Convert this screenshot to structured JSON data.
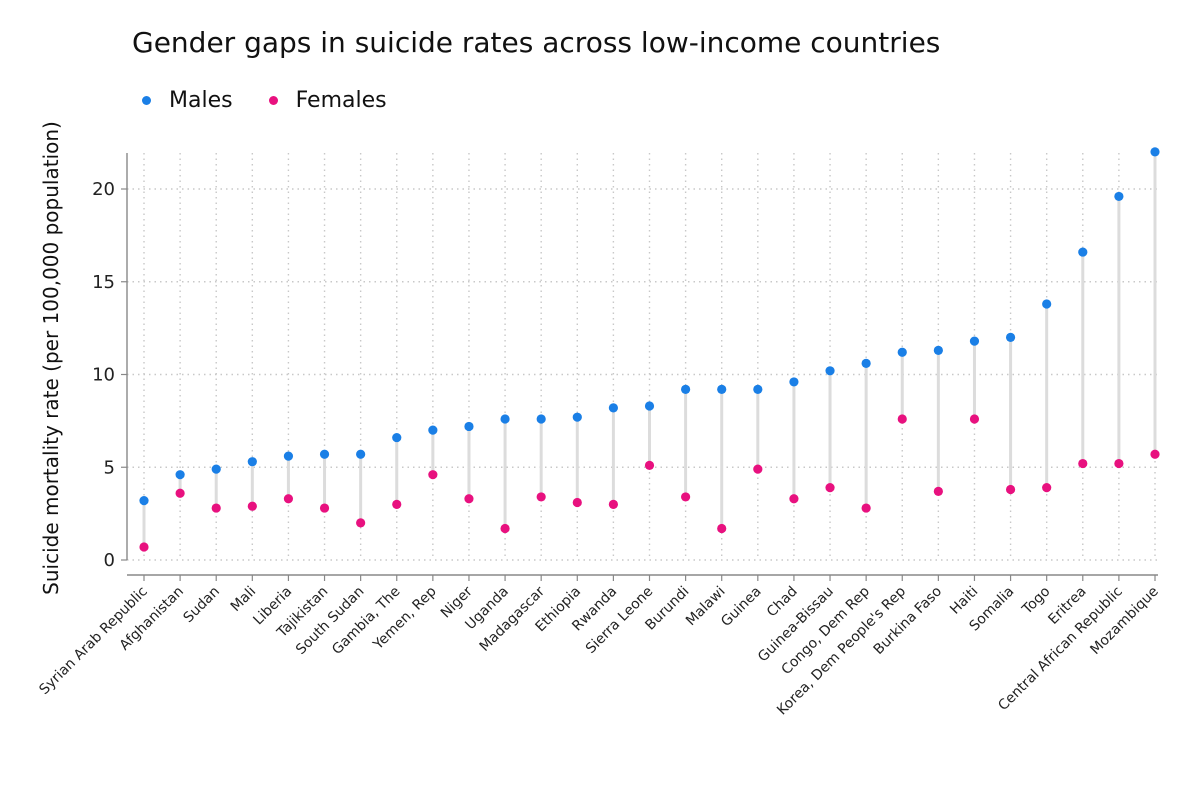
{
  "colors": {
    "males": "#1a7fe6",
    "females": "#e8117f",
    "connector": "#dcdcdc",
    "grid": "#c8c8c8",
    "axis": "#888888"
  },
  "chart_data": {
    "type": "scatter",
    "subtype": "dumbbell",
    "title": "Gender gaps in suicide rates across low-income countries",
    "ylabel": "Suicide mortality rate (per 100,000 population)",
    "ylim": [
      0,
      22
    ],
    "yticks": [
      0,
      5,
      10,
      15,
      20
    ],
    "grid": true,
    "legend_position": "top-left",
    "categories": [
      "Syrian Arab Republic",
      "Afghanistan",
      "Sudan",
      "Mali",
      "Liberia",
      "Tajikistan",
      "South Sudan",
      "Gambia, The",
      "Yemen, Rep",
      "Niger",
      "Uganda",
      "Madagascar",
      "Ethiopia",
      "Rwanda",
      "Sierra Leone",
      "Burundi",
      "Malawi",
      "Guinea",
      "Chad",
      "Guinea-Bissau",
      "Congo, Dem Rep",
      "Korea, Dem People's Rep",
      "Burkina Faso",
      "Haiti",
      "Somalia",
      "Togo",
      "Eritrea",
      "Central African Republic",
      "Mozambique"
    ],
    "series": [
      {
        "name": "Males",
        "values": [
          3.2,
          4.6,
          4.9,
          5.3,
          5.6,
          5.7,
          5.7,
          6.6,
          7.0,
          7.2,
          7.6,
          7.6,
          7.7,
          8.2,
          8.3,
          9.2,
          9.2,
          9.2,
          9.6,
          10.2,
          10.6,
          11.2,
          11.3,
          11.8,
          12.0,
          13.8,
          16.6,
          19.6,
          22.0
        ]
      },
      {
        "name": "Females",
        "values": [
          0.7,
          3.6,
          2.8,
          2.9,
          3.3,
          2.8,
          2.0,
          3.0,
          4.6,
          3.3,
          1.7,
          3.4,
          3.1,
          3.0,
          5.1,
          3.4,
          1.7,
          4.9,
          3.3,
          3.9,
          2.8,
          7.6,
          3.7,
          7.6,
          3.8,
          3.9,
          5.2,
          5.2,
          5.7
        ]
      }
    ]
  }
}
